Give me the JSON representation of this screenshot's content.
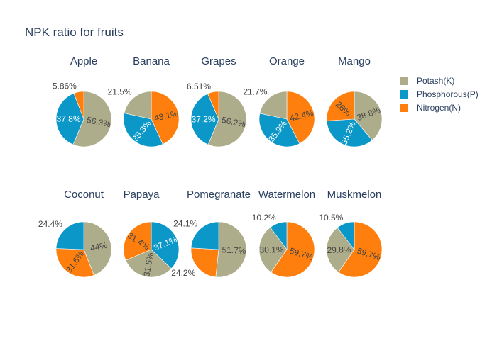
{
  "chart_data": {
    "type": "pie",
    "title": "NPK ratio for fruits",
    "legend": {
      "placement": "top-right",
      "entries": [
        "Potash(K)",
        "Phosphorous(P)",
        "Nitrogen(N)"
      ]
    },
    "colors": {
      "Potash(K)": "#adad8b",
      "Phosphorous(P)": "#0b98c9",
      "Nitrogen(N)": "#ff7f0e"
    },
    "pies": [
      {
        "name": "Apple",
        "slices": [
          {
            "label": "Potash(K)",
            "value": 56.3,
            "text": "56.3%"
          },
          {
            "label": "Phosphorous(P)",
            "value": 37.8,
            "text": "37.8%"
          },
          {
            "label": "Nitrogen(N)",
            "value": 5.86,
            "text": "5.86%"
          }
        ]
      },
      {
        "name": "Banana",
        "slices": [
          {
            "label": "Nitrogen(N)",
            "value": 43.1,
            "text": "43.1%"
          },
          {
            "label": "Phosphorous(P)",
            "value": 35.3,
            "text": "35.3%"
          },
          {
            "label": "Potash(K)",
            "value": 21.5,
            "text": "21.5%"
          }
        ]
      },
      {
        "name": "Grapes",
        "slices": [
          {
            "label": "Potash(K)",
            "value": 56.2,
            "text": "56.2%"
          },
          {
            "label": "Phosphorous(P)",
            "value": 37.2,
            "text": "37.2%"
          },
          {
            "label": "Nitrogen(N)",
            "value": 6.51,
            "text": "6.51%"
          }
        ]
      },
      {
        "name": "Orange",
        "slices": [
          {
            "label": "Nitrogen(N)",
            "value": 42.4,
            "text": "42.4%"
          },
          {
            "label": "Phosphorous(P)",
            "value": 35.9,
            "text": "35.9%"
          },
          {
            "label": "Potash(K)",
            "value": 21.7,
            "text": "21.7%"
          }
        ]
      },
      {
        "name": "Mango",
        "slices": [
          {
            "label": "Potash(K)",
            "value": 38.8,
            "text": "38.8%"
          },
          {
            "label": "Phosphorous(P)",
            "value": 35.2,
            "text": "35.2%"
          },
          {
            "label": "Nitrogen(N)",
            "value": 26,
            "text": "26%"
          }
        ]
      },
      {
        "name": "Coconut",
        "slices": [
          {
            "label": "Potash(K)",
            "value": 44,
            "text": "44%"
          },
          {
            "label": "Nitrogen(N)",
            "value": 31.6,
            "text": "31.6%"
          },
          {
            "label": "Phosphorous(P)",
            "value": 24.4,
            "text": "24.4%"
          }
        ]
      },
      {
        "name": "Papaya",
        "slices": [
          {
            "label": "Phosphorous(P)",
            "value": 37.1,
            "text": "37.1%"
          },
          {
            "label": "Potash(K)",
            "value": 31.5,
            "text": "31.5%"
          },
          {
            "label": "Nitrogen(N)",
            "value": 31.4,
            "text": "31.4%"
          }
        ]
      },
      {
        "name": "Pomegranate",
        "slices": [
          {
            "label": "Potash(K)",
            "value": 51.7,
            "text": "51.7%"
          },
          {
            "label": "Nitrogen(N)",
            "value": 24.2,
            "text": "24.2%"
          },
          {
            "label": "Phosphorous(P)",
            "value": 24.1,
            "text": "24.1%"
          }
        ]
      },
      {
        "name": "Watermelon",
        "slices": [
          {
            "label": "Nitrogen(N)",
            "value": 59.7,
            "text": "59.7%"
          },
          {
            "label": "Potash(K)",
            "value": 30.1,
            "text": "30.1%"
          },
          {
            "label": "Phosphorous(P)",
            "value": 10.2,
            "text": "10.2%"
          }
        ]
      },
      {
        "name": "Muskmelon",
        "slices": [
          {
            "label": "Nitrogen(N)",
            "value": 59.7,
            "text": "59.7%"
          },
          {
            "label": "Potash(K)",
            "value": 29.8,
            "text": "29.8%"
          },
          {
            "label": "Phosphorous(P)",
            "value": 10.5,
            "text": "10.5%"
          }
        ]
      }
    ]
  }
}
